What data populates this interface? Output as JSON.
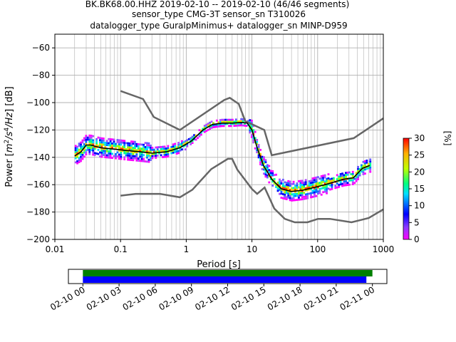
{
  "chart_data": [
    {
      "type": "heatmap",
      "title_lines": [
        "BK.BK68.00.HHZ   2019-02-10 -- 2019-02-10  (46/46 segments)",
        "sensor_type CMG-3T sensor_sn T310026",
        "datalogger_type GuralpMinimus+ datalogger_sn MINP-D959"
      ],
      "xlabel": "Period [s]",
      "ylabel_parts": {
        "pre": "Power [",
        "m": "m",
        "m_exp": "2",
        "s": "/s",
        "s_exp": "4",
        "hz": "/Hz",
        "post": "] [dB]"
      },
      "xscale": "log",
      "xlim": [
        0.01,
        1000
      ],
      "ylim": [
        -200,
        -50
      ],
      "xticks": [
        {
          "value": 0.01,
          "label": "0.01"
        },
        {
          "value": 0.1,
          "label": "0.1"
        },
        {
          "value": 1,
          "label": "1"
        },
        {
          "value": 10,
          "label": "10"
        },
        {
          "value": 100,
          "label": "100"
        },
        {
          "value": 1000,
          "label": "1000"
        }
      ],
      "yticks": [
        {
          "value": -60,
          "label": "−60"
        },
        {
          "value": -80,
          "label": "−80"
        },
        {
          "value": -100,
          "label": "−100"
        },
        {
          "value": -120,
          "label": "−120"
        },
        {
          "value": -140,
          "label": "−140"
        },
        {
          "value": -160,
          "label": "−160"
        },
        {
          "value": -180,
          "label": "−180"
        },
        {
          "value": -200,
          "label": "−200"
        }
      ],
      "grid": true,
      "noise_models": {
        "high": {
          "x": [
            0.1,
            0.22,
            0.32,
            0.8,
            3.8,
            4.6,
            6.3,
            7.9,
            15.4,
            20,
            354.8,
            1000
          ],
          "y": [
            -91.5,
            -97.4,
            -110.5,
            -120,
            -98,
            -96.5,
            -101,
            -113.5,
            -120,
            -138.5,
            -126,
            -111.5
          ]
        },
        "low": {
          "x": [
            0.1,
            0.17,
            0.4,
            0.8,
            1.24,
            2.4,
            4.3,
            5.0,
            6.0,
            10,
            12,
            15.6,
            21.9,
            31.6,
            45,
            70,
            101,
            154,
            328,
            600,
            1000
          ],
          "y": [
            -168,
            -166.7,
            -166.7,
            -169.2,
            -163.7,
            -148.6,
            -141.1,
            -141.1,
            -149,
            -163.2,
            -166.7,
            -162.1,
            -177.5,
            -185,
            -187.5,
            -187.5,
            -185,
            -185,
            -187.5,
            -184.4,
            -178
          ]
        }
      },
      "mode_curve": {
        "x": [
          0.02,
          0.025,
          0.03,
          0.035,
          0.05,
          0.08,
          0.12,
          0.2,
          0.3,
          0.5,
          0.8,
          1.2,
          1.8,
          2.5,
          3.5,
          5,
          7,
          8.5,
          10,
          12,
          15,
          20,
          28,
          40,
          60,
          90,
          130,
          180,
          250,
          350,
          480,
          620
        ],
        "y": [
          -139,
          -136,
          -131,
          -131,
          -133,
          -134,
          -135,
          -136,
          -137,
          -136,
          -133,
          -128,
          -120,
          -116,
          -115,
          -115,
          -114.5,
          -115,
          -120,
          -133,
          -146,
          -156,
          -163,
          -165,
          -164,
          -162,
          -160,
          -158,
          -156,
          -155,
          -148,
          -146
        ]
      },
      "colorbar": {
        "label": "[%]",
        "range": [
          0,
          30
        ],
        "ticks": [
          {
            "value": 0,
            "label": "0"
          },
          {
            "value": 5,
            "label": "5"
          },
          {
            "value": 10,
            "label": "10"
          },
          {
            "value": 15,
            "label": "15"
          },
          {
            "value": 20,
            "label": "20"
          },
          {
            "value": 25,
            "label": "25"
          },
          {
            "value": 30,
            "label": "30"
          }
        ]
      },
      "colors": {
        "noise_model": "#666666",
        "mode": "#000000",
        "grid": "#b0b0b0"
      }
    },
    {
      "type": "timeline",
      "bars": [
        {
          "name": "data coverage",
          "start_hour": 0,
          "end_hour": 24,
          "color": "#008000"
        },
        {
          "name": "psd coverage",
          "start_hour": 0,
          "end_hour": 23.5,
          "color": "#0000ff"
        }
      ],
      "xlim_hours": [
        -1.2,
        25.2
      ],
      "ticks": [
        {
          "hour": 0,
          "label": "02-10 00"
        },
        {
          "hour": 3,
          "label": "02-10 03"
        },
        {
          "hour": 6,
          "label": "02-10 06"
        },
        {
          "hour": 9,
          "label": "02-10 09"
        },
        {
          "hour": 12,
          "label": "02-10 12"
        },
        {
          "hour": 15,
          "label": "02-10 15"
        },
        {
          "hour": 18,
          "label": "02-10 18"
        },
        {
          "hour": 21,
          "label": "02-10 21"
        },
        {
          "hour": 24,
          "label": "02-11 00"
        }
      ]
    }
  ]
}
